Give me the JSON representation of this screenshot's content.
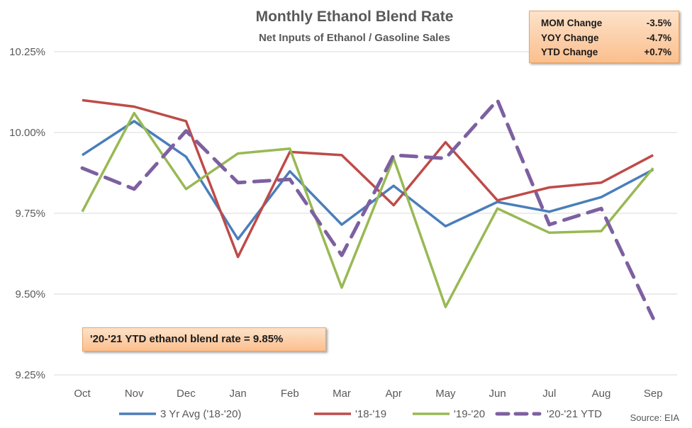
{
  "colors": {
    "3yr": "#4a7ebb",
    "1819": "#be4b48",
    "1920": "#98b954",
    "2021": "#7d60a0",
    "grid": "#d9d9d9",
    "text": "#595959",
    "box": "#fbbf8e"
  },
  "stats": [
    {
      "label": "MOM Change",
      "value": "-3.5%"
    },
    {
      "label": "YOY Change",
      "value": "-4.7%"
    },
    {
      "label": "YTD Change",
      "value": "+0.7%"
    }
  ],
  "note": "'20-'21 YTD ethanol blend rate = 9.85%",
  "source": "Source: EIA",
  "chart_data": {
    "type": "line",
    "title": "Monthly Ethanol Blend Rate",
    "subtitle": "Net Inputs of Ethanol / Gasoline Sales",
    "categories": [
      "Oct",
      "Nov",
      "Dec",
      "Jan",
      "Feb",
      "Mar",
      "Apr",
      "May",
      "Jun",
      "Jul",
      "Aug",
      "Sep"
    ],
    "ylim": [
      9.25,
      10.25
    ],
    "yticks": [
      9.25,
      9.5,
      9.75,
      10.0,
      10.25
    ],
    "ytick_labels": [
      "9.25%",
      "9.50%",
      "9.75%",
      "10.00%",
      "10.25%"
    ],
    "grid": true,
    "legend_position": "bottom",
    "series": [
      {
        "name": "3 Yr Avg ('18-'20)",
        "color_key": "3yr",
        "dashed": false,
        "values": [
          9.93,
          10.035,
          9.925,
          9.67,
          9.88,
          9.715,
          9.835,
          9.71,
          9.785,
          9.755,
          9.8,
          9.885
        ]
      },
      {
        "name": "'18-'19",
        "color_key": "1819",
        "dashed": false,
        "values": [
          10.1,
          10.08,
          10.035,
          9.615,
          9.94,
          9.93,
          9.775,
          9.97,
          9.79,
          9.83,
          9.845,
          9.93
        ]
      },
      {
        "name": "'19-'20",
        "color_key": "1920",
        "dashed": false,
        "values": [
          9.755,
          10.06,
          9.825,
          9.935,
          9.95,
          9.52,
          9.92,
          9.46,
          9.765,
          9.69,
          9.695,
          9.89
        ]
      },
      {
        "name": "'20-'21 YTD",
        "color_key": "2021",
        "dashed": true,
        "values": [
          9.89,
          9.825,
          10.005,
          9.845,
          9.855,
          9.62,
          9.93,
          9.92,
          10.1,
          9.715,
          9.765,
          9.425
        ]
      }
    ]
  }
}
